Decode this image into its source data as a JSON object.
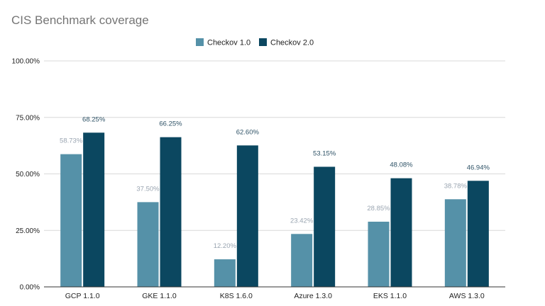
{
  "chart_data": {
    "type": "bar",
    "title": "CIS Benchmark coverage",
    "xlabel": "",
    "ylabel": "",
    "categories": [
      "GCP 1.1.0",
      "GKE 1.1.0",
      "K8S 1.6.0",
      "Azure 1.3.0",
      "EKS 1.1.0",
      "AWS 1.3.0"
    ],
    "series": [
      {
        "name": "Checkov 1.0",
        "color": "#5591a8",
        "label_color": "#9aa5b1",
        "values": [
          58.73,
          37.5,
          12.2,
          23.42,
          28.85,
          38.78
        ],
        "labels": [
          "58.73%",
          "37.50%",
          "12.20%",
          "23.42%",
          "28.85%",
          "38.78%"
        ]
      },
      {
        "name": "Checkov 2.0",
        "color": "#0b4760",
        "label_color": "#2e5266",
        "values": [
          68.25,
          66.25,
          62.6,
          53.15,
          48.08,
          46.94
        ],
        "labels": [
          "68.25%",
          "66.25%",
          "62.60%",
          "53.15%",
          "48.08%",
          "46.94%"
        ]
      }
    ],
    "ylim": [
      0,
      100
    ],
    "yticks": [
      0,
      25,
      50,
      75,
      100
    ],
    "ytick_labels": [
      "0.00%",
      "25.00%",
      "50.00%",
      "75.00%",
      "100.00%"
    ],
    "grid": true,
    "legend_position": "top-center"
  }
}
